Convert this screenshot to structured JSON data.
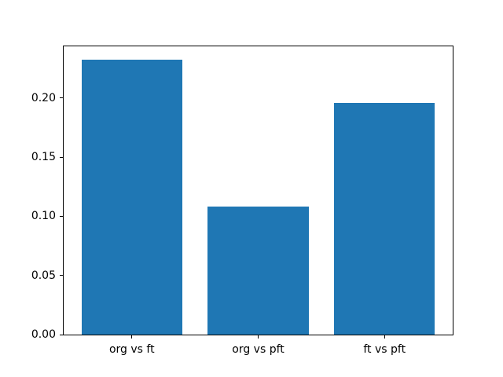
{
  "figure": {
    "background": "#ffffff"
  },
  "chart_data": {
    "type": "bar",
    "categories": [
      "org vs ft",
      "org vs pft",
      "ft vs pft"
    ],
    "values": [
      0.232,
      0.108,
      0.196
    ],
    "title": "",
    "xlabel": "",
    "ylabel": "",
    "ylim": [
      0,
      0.2436
    ],
    "xlim": [
      -0.54,
      2.54
    ],
    "yticks": [
      0,
      0.05,
      0.1,
      0.15,
      0.2
    ],
    "ytick_labels": [
      "0.00",
      "0.05",
      "0.10",
      "0.15",
      "0.20"
    ],
    "bar_width_fraction": 0.8,
    "bar_color": "#1f77b4",
    "axis_color": "#000000",
    "grid": false,
    "legend": "none"
  }
}
